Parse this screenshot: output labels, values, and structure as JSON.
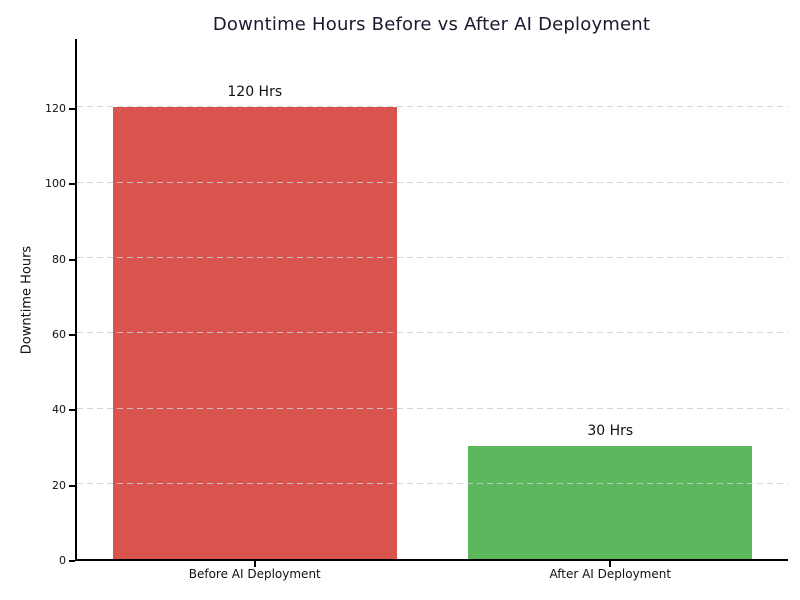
{
  "chart_data": {
    "type": "bar",
    "title": "Downtime Hours Before vs After AI Deployment",
    "xlabel": "",
    "ylabel": "Downtime Hours",
    "categories": [
      "Before AI Deployment",
      "After AI Deployment"
    ],
    "values": [
      120,
      30
    ],
    "value_labels": [
      "120 Hrs",
      "30 Hrs"
    ],
    "bar_colors": [
      "#d9534f",
      "#5cb85c"
    ],
    "yticks": [
      0,
      20,
      40,
      60,
      80,
      100,
      120
    ],
    "ylim": [
      0,
      138
    ],
    "grid": "horizontal-dashed",
    "grid_color": "#cccccc",
    "legend_position": "none",
    "title_color": "#1a1a2e",
    "axis_color": "#000000"
  }
}
